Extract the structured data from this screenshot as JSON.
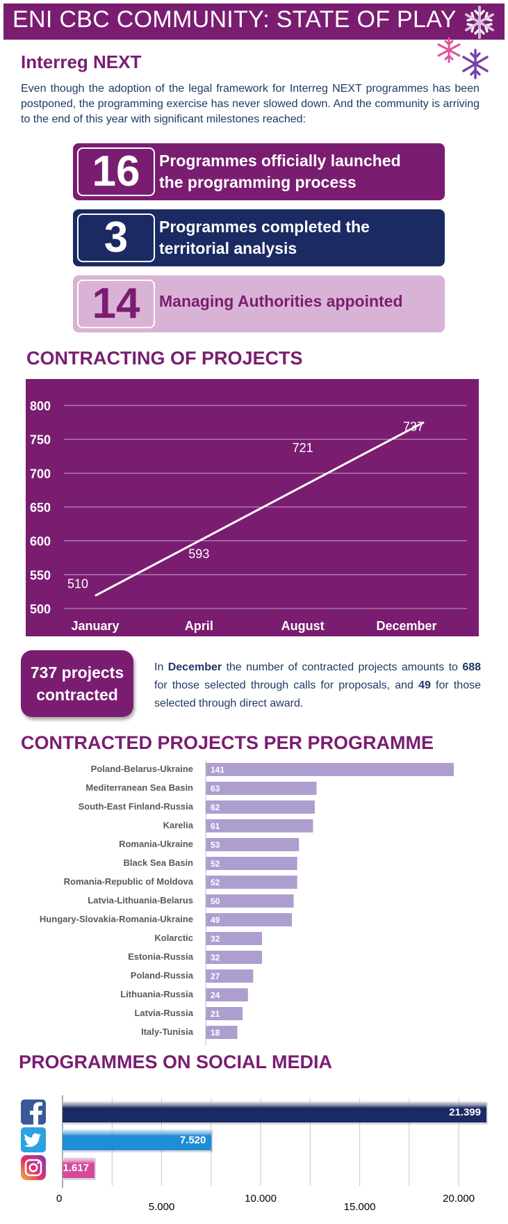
{
  "header": {
    "title": "ENI CBC COMMUNITY: STATE OF PLAY",
    "colors": {
      "primary": "#7a1d71",
      "navy": "#1b2a63",
      "light": "#d9b3d5",
      "bar": "#ae9ed0"
    }
  },
  "interreg": {
    "heading": "Interreg NEXT",
    "intro": "Even though the adoption of the legal framework for Interreg NEXT programmes has been postponed, the programming exercise has never slowed down. And the community is arriving to the end of this year with significant milestones reached:",
    "milestones": [
      {
        "value": "16",
        "line1": "Programmes officially launched",
        "line2": "the programming process"
      },
      {
        "value": "3",
        "line1": "Programmes completed the",
        "line2": "territorial analysis"
      },
      {
        "value": "14",
        "line1": "Managing Authorities appointed",
        "line2": ""
      }
    ]
  },
  "contracting": {
    "heading": "CONTRACTING OF PROJECTS",
    "callout_line1": "737 projects",
    "callout_line2": "contracted",
    "desc": {
      "p1": "In ",
      "b1": "December",
      "p2": " the number of contracted projects amounts to ",
      "b2": "688",
      "p3": " for those selected through calls for proposals, and ",
      "b3": "49",
      "p4": " for those selected through direct award."
    }
  },
  "per_programme": {
    "heading": "CONTRACTED PROJECTS PER PROGRAMME"
  },
  "social": {
    "heading": "PROGRAMMES ON SOCIAL MEDIA",
    "icons": [
      "facebook-icon",
      "twitter-icon",
      "instagram-icon"
    ]
  },
  "chart_data": [
    {
      "type": "line",
      "x": [
        "January",
        "April",
        "August",
        "December"
      ],
      "values": [
        510,
        593,
        721,
        737
      ],
      "ylim": [
        500,
        800
      ],
      "yticks": [
        800,
        750,
        700,
        650,
        600,
        550,
        500
      ],
      "grid": true
    },
    {
      "type": "bar",
      "orientation": "horizontal",
      "categories": [
        "Poland-Belarus-Ukraine",
        "Mediterranean Sea Basin",
        "South-East Finland-Russia",
        "Karelia",
        "Romania-Ukraine",
        "Black Sea Basin",
        "Romania-Republic of Moldova",
        "Latvia-Lithuania-Belarus",
        "Hungary-Slovakia-Romania-Ukraine",
        "Kolarctic",
        "Estonia-Russia",
        "Poland-Russia",
        "Lithuania-Russia",
        "Latvia-Russia",
        "Italy-Tunisia"
      ],
      "values": [
        141,
        63,
        62,
        61,
        53,
        52,
        52,
        50,
        49,
        32,
        32,
        27,
        24,
        21,
        18
      ]
    },
    {
      "type": "bar",
      "orientation": "horizontal",
      "categories": [
        "Facebook",
        "Twitter",
        "Instagram"
      ],
      "values": [
        21399,
        7520,
        1617
      ],
      "labels": [
        "21.399",
        "7.520",
        "1.617"
      ],
      "colors": [
        "#1b2a63",
        "#1e8ed6",
        "#d54b9c"
      ],
      "xticks": [
        "0",
        "5.000",
        "10.000",
        "15.000",
        "20.000"
      ],
      "xlim": [
        0,
        21399
      ],
      "grid": true
    }
  ]
}
